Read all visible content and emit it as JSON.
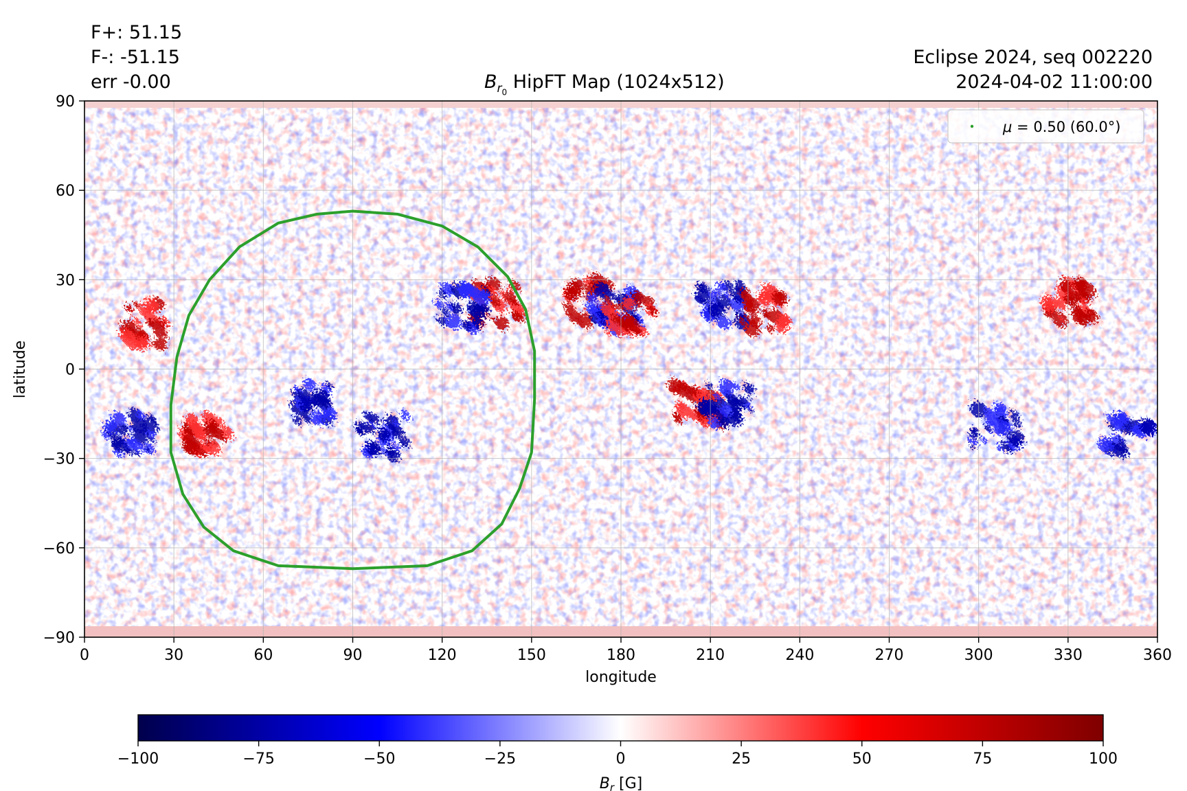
{
  "stats": {
    "fplus": "F+: 51.15",
    "fminus": "F-: -51.15",
    "err": "err -0.00"
  },
  "info": {
    "line1": "Eclipse 2024, seq 002220",
    "line2": "2024-04-02 11:00:00"
  },
  "title": {
    "symbol": "B",
    "sub": "r",
    "subsub": "0",
    "text": " HipFT Map (1024x512)"
  },
  "legend": {
    "mu": "μ",
    "label": " = 0.50 (60.0°)",
    "color": "#2ca02c",
    "placement": "top-right"
  },
  "colorbar": {
    "label_symbol": "B",
    "label_sub": "r",
    "label_unit": " [G]",
    "range": [
      -100,
      100
    ],
    "ticks": [
      -100,
      -75,
      -50,
      -25,
      0,
      25,
      50,
      75,
      100
    ],
    "tick_labels": [
      "−100",
      "−75",
      "−50",
      "−25",
      "0",
      "25",
      "50",
      "75",
      "100"
    ],
    "colormap": "seismic"
  },
  "chart_data": {
    "type": "heatmap",
    "xlabel": "longitude",
    "ylabel": "latitude",
    "xlim": [
      0,
      360
    ],
    "ylim": [
      -90,
      90
    ],
    "xticks": [
      0,
      30,
      60,
      90,
      120,
      150,
      180,
      210,
      240,
      270,
      300,
      330,
      360
    ],
    "xtick_labels": [
      "0",
      "30",
      "60",
      "90",
      "120",
      "150",
      "180",
      "210",
      "240",
      "270",
      "300",
      "330",
      "360"
    ],
    "yticks": [
      -90,
      -60,
      -30,
      0,
      30,
      60,
      90
    ],
    "ytick_labels": [
      "−90",
      "−60",
      "−30",
      "0",
      "30",
      "60",
      "90"
    ],
    "grid": true,
    "contour": {
      "name": "μ = 0.50 (60.0°)",
      "color": "#2ca02c",
      "points": [
        [
          90,
          53
        ],
        [
          105,
          52
        ],
        [
          120,
          48
        ],
        [
          132,
          41
        ],
        [
          142,
          31
        ],
        [
          148,
          20
        ],
        [
          151,
          6
        ],
        [
          151,
          -10
        ],
        [
          150,
          -28
        ],
        [
          146,
          -40
        ],
        [
          140,
          -52
        ],
        [
          130,
          -61
        ],
        [
          115,
          -66
        ],
        [
          90,
          -67
        ],
        [
          65,
          -66
        ],
        [
          50,
          -61
        ],
        [
          40,
          -53
        ],
        [
          33,
          -42
        ],
        [
          29,
          -28
        ],
        [
          29,
          -12
        ],
        [
          31,
          4
        ],
        [
          35,
          18
        ],
        [
          42,
          30
        ],
        [
          52,
          41
        ],
        [
          65,
          49
        ],
        [
          78,
          52
        ],
        [
          90,
          53
        ]
      ]
    },
    "active_regions": [
      {
        "lon": 40,
        "lat": -22,
        "sign": "positive"
      },
      {
        "lon": 78,
        "lat": -12,
        "sign": "negative"
      },
      {
        "lon": 100,
        "lat": -22,
        "sign": "negative"
      },
      {
        "lon": 138,
        "lat": 22,
        "sign": "positive"
      },
      {
        "lon": 127,
        "lat": 20,
        "sign": "negative"
      },
      {
        "lon": 168,
        "lat": 23,
        "sign": "positive"
      },
      {
        "lon": 178,
        "lat": 20,
        "sign": "negative"
      },
      {
        "lon": 183,
        "lat": 18,
        "sign": "positive"
      },
      {
        "lon": 206,
        "lat": -12,
        "sign": "positive"
      },
      {
        "lon": 216,
        "lat": -12,
        "sign": "negative"
      },
      {
        "lon": 213,
        "lat": 22,
        "sign": "negative"
      },
      {
        "lon": 228,
        "lat": 20,
        "sign": "positive"
      },
      {
        "lon": 305,
        "lat": -20,
        "sign": "negative"
      },
      {
        "lon": 330,
        "lat": 22,
        "sign": "positive"
      },
      {
        "lon": 350,
        "lat": -22,
        "sign": "negative"
      },
      {
        "lon": 20,
        "lat": 15,
        "sign": "positive"
      },
      {
        "lon": 15,
        "lat": -22,
        "sign": "negative"
      }
    ]
  }
}
